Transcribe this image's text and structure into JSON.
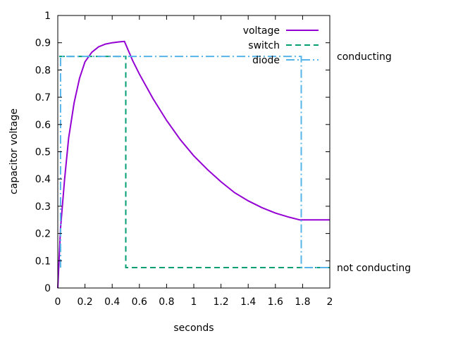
{
  "chart_data": {
    "type": "line",
    "xlabel": "seconds",
    "ylabel": "capacitor voltage",
    "xlim": [
      0,
      2
    ],
    "ylim": [
      0,
      1
    ],
    "xticks": [
      0,
      0.2,
      0.4,
      0.6,
      0.8,
      1,
      1.2,
      1.4,
      1.6,
      1.8,
      2
    ],
    "xtick_labels": [
      "0",
      "0.2",
      "0.4",
      "0.6",
      "0.8",
      "1",
      "1.2",
      "1.4",
      "1.6",
      "1.8",
      "2"
    ],
    "yticks": [
      0,
      0.1,
      0.2,
      0.3,
      0.4,
      0.5,
      0.6,
      0.7,
      0.8,
      0.9,
      1
    ],
    "ytick_labels": [
      "0",
      "0.1",
      "0.2",
      "0.3",
      "0.4",
      "0.5",
      "0.6",
      "0.7",
      "0.8",
      "0.9",
      "1"
    ],
    "grid": false,
    "legend_position": "top-right",
    "right_labels": [
      {
        "text": "conducting",
        "y": 0.85
      },
      {
        "text": "not conducting",
        "y": 0.075
      }
    ],
    "series": [
      {
        "name": "voltage",
        "color": "#9400d3",
        "dash": "solid",
        "x": [
          0,
          0.02,
          0.05,
          0.08,
          0.12,
          0.16,
          0.2,
          0.25,
          0.3,
          0.35,
          0.4,
          0.45,
          0.49,
          0.55,
          0.6,
          0.7,
          0.8,
          0.9,
          1.0,
          1.1,
          1.2,
          1.3,
          1.4,
          1.5,
          1.6,
          1.7,
          1.78,
          1.79,
          2.0
        ],
        "values": [
          0,
          0.22,
          0.4,
          0.55,
          0.68,
          0.77,
          0.83,
          0.865,
          0.885,
          0.895,
          0.9,
          0.903,
          0.905,
          0.835,
          0.785,
          0.695,
          0.615,
          0.545,
          0.485,
          0.435,
          0.39,
          0.35,
          0.32,
          0.295,
          0.275,
          0.26,
          0.25,
          0.25,
          0.25
        ]
      },
      {
        "name": "switch",
        "color": "#009e73",
        "dash": "dashed",
        "x": [
          0.01,
          0.5,
          0.5,
          2.0
        ],
        "values": [
          0.85,
          0.85,
          0.075,
          0.075
        ]
      },
      {
        "name": "diode",
        "color": "#56b4e9",
        "dash": "dashdot",
        "x": [
          0.02,
          0.02,
          1.3,
          1.3,
          1.79,
          1.79,
          2.0
        ],
        "values": [
          0.075,
          0.85,
          0.85,
          0.85,
          0.85,
          0.075,
          0.075
        ]
      }
    ]
  }
}
